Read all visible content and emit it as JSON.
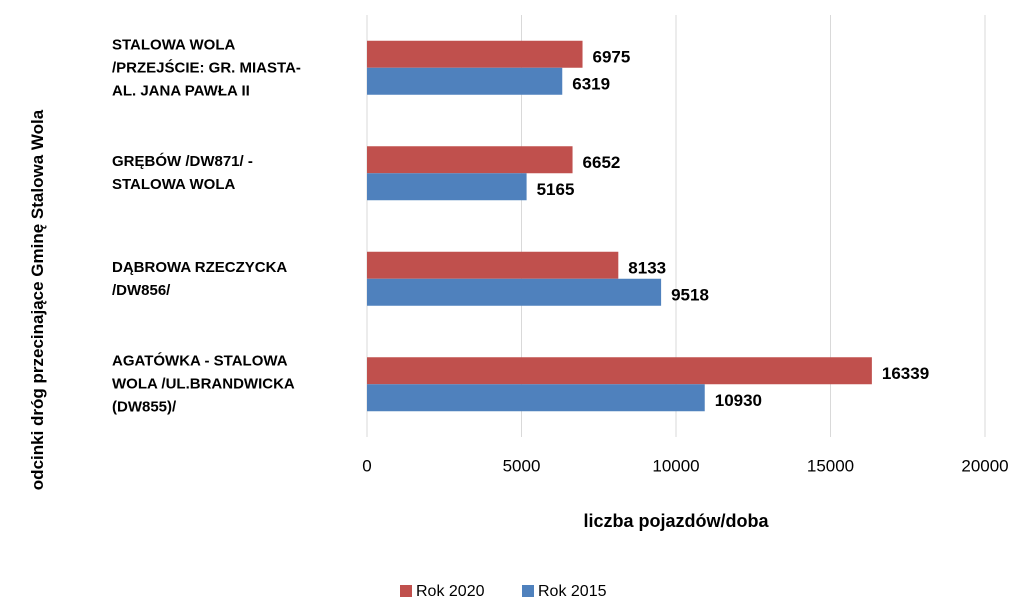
{
  "chart_data": {
    "type": "bar",
    "orientation": "horizontal",
    "y_label": "odcinki dróg przecinające Gminę Stalowa Wola",
    "x_label": "liczba pojazdów/doba",
    "categories": [
      "STALOWA WOLA /PRZEJŚCIE: GR. MIASTA- AL. JANA PAWŁA II",
      "GRĘBÓW /DW871/ - STALOWA WOLA",
      "DĄBROWA RZECZYCKA /DW856/",
      "AGATÓWKA - STALOWA WOLA /UL.BRANDWICKA (DW855)/"
    ],
    "series": [
      {
        "name": "Rok 2020",
        "color": "#c0504d",
        "values": [
          6975,
          6652,
          8133,
          16339
        ]
      },
      {
        "name": "Rok 2015",
        "color": "#4f81bd",
        "values": [
          6319,
          5165,
          9518,
          10930
        ]
      }
    ],
    "xlim": [
      0,
      20000
    ],
    "xticks": [
      0,
      5000,
      10000,
      15000,
      20000
    ],
    "grid": true,
    "legend": "bottom"
  }
}
